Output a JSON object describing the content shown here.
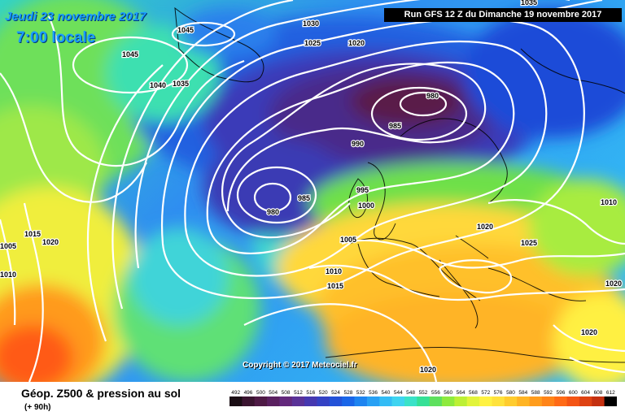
{
  "header": {
    "date": "Jeudi 23 novembre 2017",
    "local_time": "7:00 locale",
    "run": "Run GFS 12 Z du Dimanche 19 novembre 2017"
  },
  "copyright": "Copyright © 2017 Meteociel.fr",
  "footer": {
    "product": "Géop. Z500 & pression au sol",
    "forecast_hour": "(+ 90h)"
  },
  "legend": {
    "values": [
      "492",
      "496",
      "500",
      "504",
      "508",
      "512",
      "516",
      "520",
      "524",
      "528",
      "532",
      "536",
      "540",
      "544",
      "548",
      "552",
      "556",
      "560",
      "564",
      "568",
      "572",
      "576",
      "580",
      "584",
      "588",
      "592",
      "596",
      "600",
      "604",
      "608",
      "612"
    ],
    "colors": [
      "#1a0d14",
      "#3a1430",
      "#4e1a45",
      "#5a2060",
      "#63287c",
      "#5a3298",
      "#4638b0",
      "#3442c4",
      "#2352d8",
      "#1a66e8",
      "#1e84f0",
      "#28a0f4",
      "#33bcf5",
      "#3fd4f0",
      "#3ae2c8",
      "#35e096",
      "#5ee05e",
      "#8eea3e",
      "#bcf035",
      "#e2f43a",
      "#fff242",
      "#ffe23c",
      "#ffcc2e",
      "#ffb424",
      "#ff9c1c",
      "#ff8418",
      "#ff6a16",
      "#f45414",
      "#de4212",
      "#c43010",
      "#000000"
    ]
  },
  "pressure_labels": [
    "1045",
    "1045",
    "1040",
    "1035",
    "1030",
    "1025",
    "1020",
    "980",
    "985",
    "990",
    "980",
    "985",
    "995",
    "1000",
    "1005",
    "1015",
    "1020",
    "1005",
    "1010",
    "1010",
    "1015",
    "1020",
    "1025",
    "1020",
    "1020",
    "1020",
    "1035",
    "1010"
  ]
}
